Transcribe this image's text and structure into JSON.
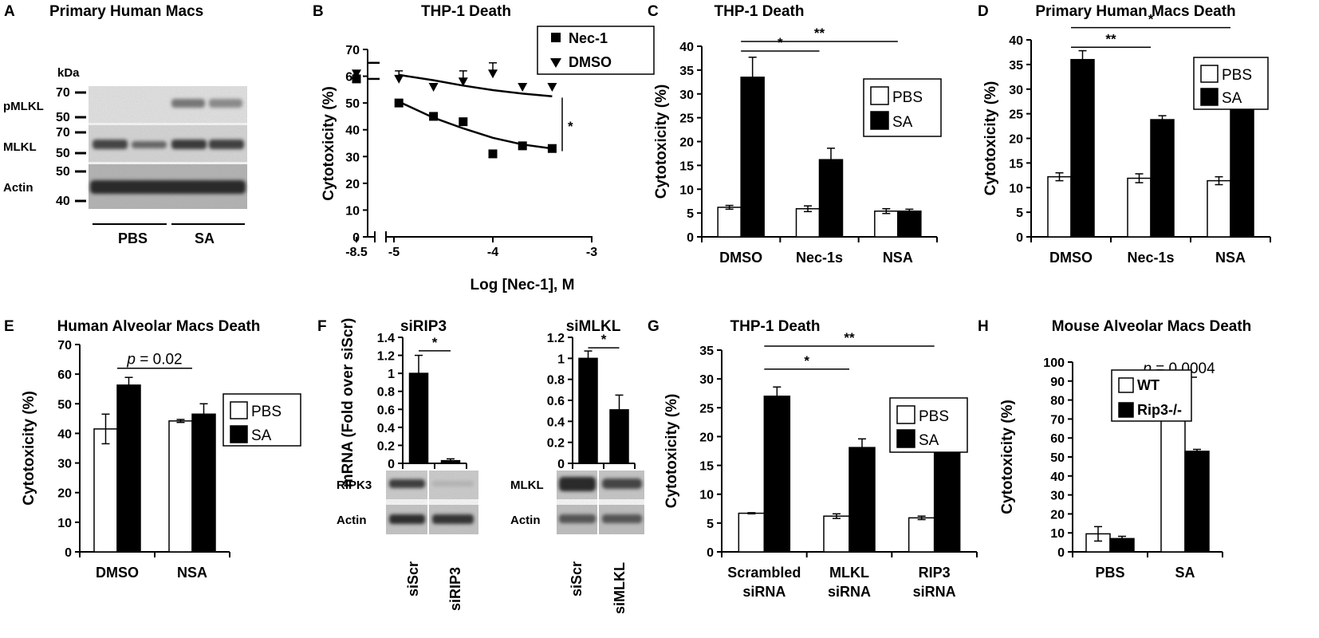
{
  "panel_letters": [
    "A",
    "B",
    "C",
    "D",
    "E",
    "F",
    "G",
    "H"
  ],
  "blot_a": {
    "title": "Primary Human Macs",
    "kda": "kDa",
    "rows": [
      {
        "label": "pMLKL",
        "markers": [
          "70",
          "50"
        ]
      },
      {
        "label": "MLKL",
        "markers": [
          "70",
          "50"
        ]
      },
      {
        "label": "Actin",
        "markers": [
          "50",
          "40"
        ]
      }
    ],
    "groups": [
      "PBS",
      "SA"
    ]
  },
  "chart_data": [
    {
      "panel": "B",
      "type": "scatter",
      "title": "THP-1 Death",
      "xlabel": "Log [Nec-1], M",
      "ylabel": "Cytotoxicity (%)",
      "ylim": [
        0,
        70
      ],
      "yticks": [
        "0",
        "10",
        "20",
        "30",
        "40",
        "50",
        "60",
        "70"
      ],
      "xticks": [
        "-8.5",
        "-5",
        "-4",
        "-3"
      ],
      "axis_break": true,
      "significance": "*",
      "series": [
        {
          "name": "Nec-1",
          "marker": "square",
          "points": [
            {
              "x": -8.5,
              "y": 59
            },
            {
              "x": -4.95,
              "y": 50
            },
            {
              "x": -4.6,
              "y": 45
            },
            {
              "x": -4.3,
              "y": 43
            },
            {
              "x": -4.0,
              "y": 31
            },
            {
              "x": -3.7,
              "y": 34
            },
            {
              "x": -3.4,
              "y": 33
            }
          ],
          "fit": [
            {
              "x": -4.95,
              "y": 50.5
            },
            {
              "x": -4.6,
              "y": 44.5
            },
            {
              "x": -4.3,
              "y": 40.5
            },
            {
              "x": -4.0,
              "y": 37
            },
            {
              "x": -3.7,
              "y": 34.5
            },
            {
              "x": -3.4,
              "y": 33
            }
          ],
          "baseline": 59
        },
        {
          "name": "DMSO",
          "marker": "triangle",
          "points": [
            {
              "x": -8.5,
              "y": 61
            },
            {
              "x": -4.95,
              "y": 59
            },
            {
              "x": -4.6,
              "y": 56
            },
            {
              "x": -4.3,
              "y": 58
            },
            {
              "x": -4.0,
              "y": 61
            },
            {
              "x": -3.7,
              "y": 56
            },
            {
              "x": -3.4,
              "y": 56
            }
          ],
          "errors": [
            0,
            3,
            0,
            4,
            4,
            0,
            0
          ],
          "fit": [
            {
              "x": -4.95,
              "y": 60.5
            },
            {
              "x": -4.6,
              "y": 58.5
            },
            {
              "x": -4.3,
              "y": 56.5
            },
            {
              "x": -4.0,
              "y": 54.8
            },
            {
              "x": -3.7,
              "y": 53.5
            },
            {
              "x": -3.4,
              "y": 52.5
            }
          ],
          "baseline": 65
        }
      ]
    },
    {
      "panel": "C",
      "type": "bar",
      "title": "THP-1 Death",
      "ylabel": "Cytotoxicity (%)",
      "categories": [
        "DMSO",
        "Nec-1s",
        "NSA"
      ],
      "ylim": [
        0,
        40
      ],
      "yticks": [
        "0",
        "5",
        "10",
        "15",
        "20",
        "25",
        "30",
        "35",
        "40"
      ],
      "series": [
        {
          "name": "PBS",
          "color": "#ffffff",
          "values": [
            6.2,
            5.9,
            5.4
          ],
          "errors": [
            0.4,
            0.6,
            0.5
          ]
        },
        {
          "name": "SA",
          "color": "#000000",
          "values": [
            33.5,
            16.2,
            5.4
          ],
          "errors": [
            4.2,
            2.4,
            0.4
          ]
        }
      ],
      "legend_position": "right",
      "significance": [
        {
          "from": 0,
          "to": 1,
          "label": "*",
          "y": 39
        },
        {
          "from": 0,
          "to": 2,
          "label": "**",
          "y": 41
        }
      ]
    },
    {
      "panel": "D",
      "type": "bar",
      "title": "Primary Human Macs Death",
      "ylabel": "Cytotoxicity (%)",
      "categories": [
        "DMSO",
        "Nec-1s",
        "NSA"
      ],
      "ylim": [
        0,
        40
      ],
      "yticks": [
        "0",
        "5",
        "10",
        "15",
        "20",
        "25",
        "30",
        "35",
        "40"
      ],
      "series": [
        {
          "name": "PBS",
          "color": "#ffffff",
          "values": [
            12.2,
            11.9,
            11.4
          ],
          "errors": [
            0.8,
            0.9,
            0.8
          ]
        },
        {
          "name": "SA",
          "color": "#000000",
          "values": [
            36.0,
            23.8,
            27.4
          ],
          "errors": [
            1.8,
            0.8,
            1.7
          ]
        }
      ],
      "legend_position": "top-right",
      "significance": [
        {
          "from": 0,
          "to": 1,
          "label": "**",
          "y": 38.5
        },
        {
          "from": 0,
          "to": 2,
          "label": "*",
          "y": 42.5
        }
      ]
    },
    {
      "panel": "E",
      "type": "bar",
      "title": "Human Alveolar Macs Death",
      "ylabel": "Cytotoxicity (%)",
      "categories": [
        "DMSO",
        "NSA"
      ],
      "ylim": [
        0,
        70
      ],
      "yticks": [
        "0",
        "10",
        "20",
        "30",
        "40",
        "50",
        "60",
        "70"
      ],
      "series": [
        {
          "name": "PBS",
          "color": "#ffffff",
          "values": [
            41.5,
            44.2
          ],
          "errors": [
            5.0,
            0.5
          ]
        },
        {
          "name": "SA",
          "color": "#000000",
          "values": [
            56.3,
            46.5
          ],
          "errors": [
            2.6,
            3.5
          ]
        }
      ],
      "legend_position": "right",
      "significance": [
        {
          "from": 0,
          "to": 1,
          "label": "p = 0.02",
          "y": 62
        }
      ]
    },
    {
      "panel": "F1",
      "type": "bar",
      "title": "siRIP3",
      "ylabel": "mRNA (Fold over siScr)",
      "categories": [
        "siScr",
        "siRIP3"
      ],
      "ylim": [
        0,
        1.4
      ],
      "yticks": [
        "0",
        "0.2",
        "0.4",
        "0.6",
        "0.8",
        "1",
        "1.2",
        "1.4"
      ],
      "series": [
        {
          "name": "",
          "color": "#000000",
          "values": [
            1.0,
            0.03
          ],
          "errors": [
            0.2,
            0.02
          ]
        }
      ],
      "significance": [
        {
          "from": 0,
          "to": 1,
          "label": "*",
          "y": 1.25
        }
      ]
    },
    {
      "panel": "F2",
      "type": "bar",
      "title": "siMLKL",
      "categories": [
        "siScr",
        "siMLKL"
      ],
      "ylim": [
        0,
        1.2
      ],
      "yticks": [
        "0",
        "0.2",
        "0.4",
        "0.6",
        "0.8",
        "1",
        "1.2"
      ],
      "series": [
        {
          "name": "",
          "color": "#000000",
          "values": [
            1.0,
            0.51
          ],
          "errors": [
            0.07,
            0.14
          ]
        }
      ],
      "significance": [
        {
          "from": 0,
          "to": 1,
          "label": "*",
          "y": 1.1
        }
      ]
    },
    {
      "panel": "G",
      "type": "bar",
      "title": "THP-1 Death",
      "ylabel": "Cytotoxicity (%)",
      "categories": [
        [
          "Scrambled",
          "siRNA"
        ],
        [
          "MLKL",
          "siRNA"
        ],
        [
          "RIP3",
          "siRNA"
        ]
      ],
      "ylim": [
        0,
        35
      ],
      "yticks": [
        "0",
        "5",
        "10",
        "15",
        "20",
        "25",
        "30",
        "35"
      ],
      "series": [
        {
          "name": "PBS",
          "color": "#ffffff",
          "values": [
            6.7,
            6.2,
            5.9
          ],
          "errors": [
            0.1,
            0.4,
            0.3
          ]
        },
        {
          "name": "SA",
          "color": "#000000",
          "values": [
            27.0,
            18.1,
            18.2
          ],
          "errors": [
            1.6,
            1.5,
            0.5
          ]
        }
      ],
      "legend_position": "right",
      "significance": [
        {
          "from": 0,
          "to": 1,
          "label": "*",
          "y": 31.7
        },
        {
          "from": 0,
          "to": 2,
          "label": "**",
          "y": 35.7
        }
      ]
    },
    {
      "panel": "H",
      "type": "bar",
      "title": "Mouse Alveolar Macs Death",
      "ylabel": "Cytotoxicity (%)",
      "categories": [
        "PBS",
        "SA"
      ],
      "ylim": [
        0,
        100
      ],
      "yticks": [
        "0",
        "10",
        "20",
        "30",
        "40",
        "50",
        "60",
        "70",
        "80",
        "90",
        "100"
      ],
      "series": [
        {
          "name": "WT",
          "color": "#ffffff",
          "values": [
            9.5,
            85.0
          ],
          "errors": [
            3.8,
            5.0
          ]
        },
        {
          "name": "Rip3-/-",
          "color": "#000000",
          "values": [
            7.0,
            53.0
          ],
          "errors": [
            1.2,
            1.0
          ]
        }
      ],
      "legend_position": "top-left",
      "significance": [
        {
          "from": 1,
          "to": 1,
          "label": "p = 0.0004",
          "y": 92
        }
      ]
    }
  ],
  "blot_f": {
    "left": {
      "rows": [
        "RIPK3",
        "Actin"
      ],
      "lanes": [
        "siScr",
        "siRIP3"
      ]
    },
    "right": {
      "rows": [
        "MLKL",
        "Actin"
      ],
      "lanes": [
        "siScr",
        "siMLKL"
      ]
    }
  }
}
